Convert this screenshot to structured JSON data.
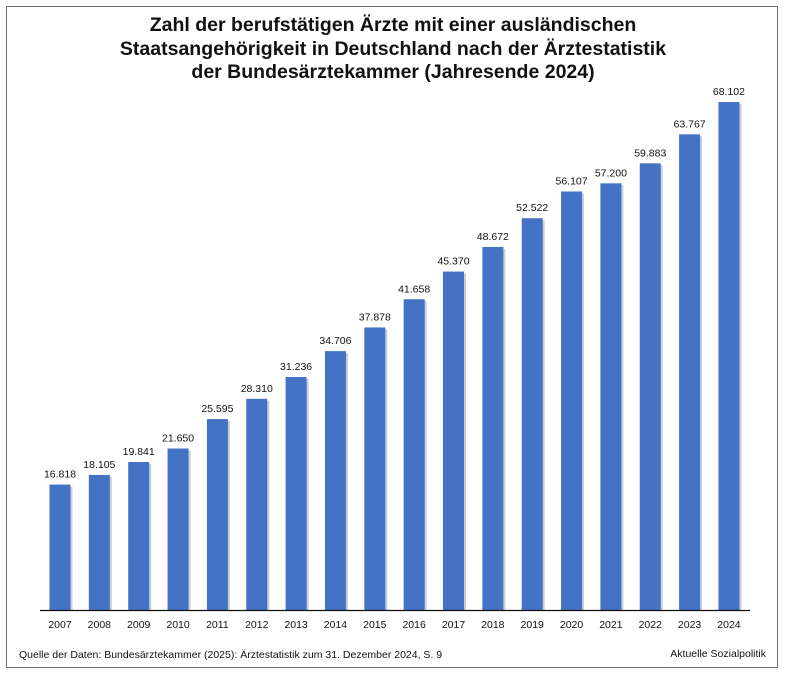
{
  "chart_data": {
    "type": "bar",
    "title_lines": [
      "Zahl der berufstätigen Ärzte mit einer ausländischen",
      "Staatsangehörigkeit in Deutschland nach der Ärztestatistik",
      "der Bundesärztekammer (Jahresende 2024)"
    ],
    "categories": [
      "2007",
      "2008",
      "2009",
      "2010",
      "2011",
      "2012",
      "2013",
      "2014",
      "2015",
      "2016",
      "2017",
      "2018",
      "2019",
      "2020",
      "2021",
      "2022",
      "2023",
      "2024"
    ],
    "values": [
      16818,
      18105,
      19841,
      21650,
      25595,
      28310,
      31236,
      34706,
      37878,
      41658,
      45370,
      48672,
      52522,
      56107,
      57200,
      59883,
      63767,
      68102
    ],
    "value_labels": [
      "16.818",
      "18.105",
      "19.841",
      "21.650",
      "25.595",
      "28.310",
      "31.236",
      "34.706",
      "37.878",
      "41.658",
      "45.370",
      "48.672",
      "52.522",
      "56.107",
      "57.200",
      "59.883",
      "63.767",
      "68.102"
    ],
    "ylim": [
      0,
      68102
    ],
    "xlabel": "",
    "ylabel": "",
    "grid": false,
    "legend": "none",
    "bar_color": "#4472c4"
  },
  "footer": {
    "source": "Quelle der Daten: Bundesärztekammer (2025): Ärztestatistik zum 31. Dezember 2024, S. 9",
    "credit": "Aktuelle Sozialpolitik"
  }
}
